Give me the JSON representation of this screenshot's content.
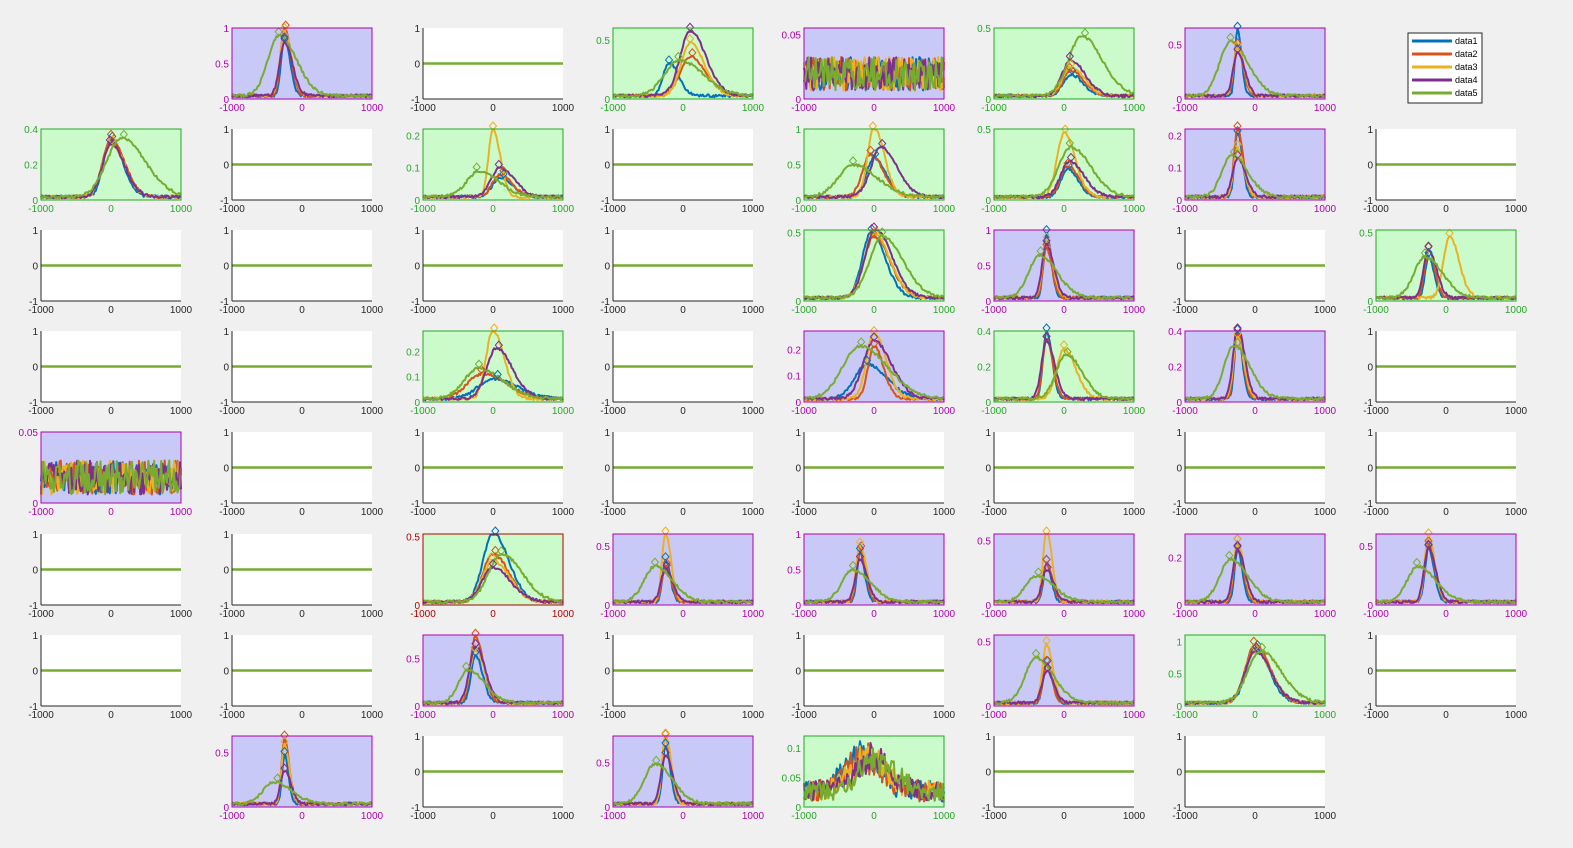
{
  "figure_background": "#f0f0f0",
  "colors": {
    "series": [
      "#0072BD",
      "#D95319",
      "#EDB120",
      "#7E2F8E",
      "#77AC30"
    ],
    "purple_bg": "#c9c9f8",
    "green_bg": "#cbfbcb",
    "purple_axis": "#b000b0",
    "green_axis": "#22aa22",
    "red_axis": "#b00000",
    "black_axis": "#262626"
  },
  "legend": {
    "entries": [
      "data1",
      "data2",
      "data3",
      "data4",
      "data5"
    ],
    "placement": "top-right"
  },
  "chart_data": {
    "type": "line",
    "layout": "8x8 grid of small line plots",
    "x_range": [
      -1000,
      1000
    ],
    "x_ticks": [
      "-1000",
      "0",
      "1000"
    ],
    "flat_y_ticks": [
      "1",
      "0",
      "-1"
    ],
    "panels": [
      {
        "row": 0,
        "col": 1,
        "kind": "peak",
        "theme": "purple",
        "ymax": 1,
        "yticks": [
          "1",
          "0.5",
          "0"
        ],
        "peak": -250,
        "amps": [
          0.8,
          0.95,
          0.9,
          0.75,
          0.85
        ],
        "shifts": [
          0,
          0,
          0,
          0,
          -80
        ],
        "widths": [
          70,
          80,
          90,
          100,
          220
        ]
      },
      {
        "row": 0,
        "col": 2,
        "kind": "flat"
      },
      {
        "row": 0,
        "col": 3,
        "kind": "peak",
        "theme": "green",
        "ymax": 0.6,
        "yticks": [
          "0.5",
          "0"
        ],
        "peak": 100,
        "amps": [
          0.28,
          0.33,
          0.45,
          0.55,
          0.3
        ],
        "shifts": [
          -300,
          0,
          0,
          0,
          -150
        ],
        "widths": [
          120,
          200,
          180,
          200,
          300
        ]
      },
      {
        "row": 0,
        "col": 4,
        "kind": "noise",
        "theme": "purple",
        "ymax": 0.055,
        "yticks": [
          "0.05",
          "0"
        ],
        "noise": 0.022
      },
      {
        "row": 0,
        "col": 5,
        "kind": "peak",
        "theme": "green",
        "ymax": 0.5,
        "yticks": [
          "0.5",
          "0"
        ],
        "peak": 100,
        "amps": [
          0.15,
          0.18,
          0.2,
          0.25,
          0.42
        ],
        "shifts": [
          0,
          0,
          0,
          0,
          150
        ],
        "widths": [
          150,
          160,
          170,
          180,
          260
        ]
      },
      {
        "row": 0,
        "col": 6,
        "kind": "peak",
        "theme": "purple",
        "ymax": 0.65,
        "yticks": [
          "0.5",
          "0"
        ],
        "peak": -250,
        "amps": [
          0.62,
          0.45,
          0.45,
          0.4,
          0.5
        ],
        "shifts": [
          0,
          0,
          0,
          0,
          -100
        ],
        "widths": [
          50,
          70,
          80,
          90,
          220
        ]
      },
      {
        "row": 1,
        "col": 0,
        "kind": "peak",
        "theme": "green",
        "ymax": 0.4,
        "yticks": [
          "0.4",
          "0.2",
          "0"
        ],
        "peak": 0,
        "amps": [
          0.32,
          0.33,
          0.3,
          0.3,
          0.33
        ],
        "shifts": [
          0,
          0,
          0,
          0,
          150
        ],
        "widths": [
          150,
          170,
          170,
          170,
          300
        ]
      },
      {
        "row": 1,
        "col": 1,
        "kind": "flat"
      },
      {
        "row": 1,
        "col": 2,
        "kind": "peak",
        "theme": "green",
        "ymax": 0.22,
        "yticks": [
          "0.2",
          "0.1",
          "0"
        ],
        "peak": 0,
        "amps": [
          0.06,
          0.07,
          0.21,
          0.09,
          0.08
        ],
        "shifts": [
          100,
          100,
          0,
          100,
          -200
        ],
        "widths": [
          150,
          150,
          90,
          180,
          250
        ]
      },
      {
        "row": 1,
        "col": 3,
        "kind": "flat"
      },
      {
        "row": 1,
        "col": 4,
        "kind": "peak",
        "theme": "green",
        "ymax": 1,
        "yticks": [
          "1",
          "0.5",
          "0"
        ],
        "peak": 0,
        "amps": [
          0.55,
          0.6,
          0.97,
          0.7,
          0.45
        ],
        "shifts": [
          0,
          -50,
          0,
          100,
          -300
        ],
        "widths": [
          150,
          160,
          130,
          200,
          300
        ]
      },
      {
        "row": 1,
        "col": 5,
        "kind": "peak",
        "theme": "green",
        "ymax": 0.5,
        "yticks": [
          "0.5",
          "0"
        ],
        "peak": 0,
        "amps": [
          0.2,
          0.22,
          0.45,
          0.25,
          0.35
        ],
        "shifts": [
          50,
          50,
          0,
          80,
          100
        ],
        "widths": [
          130,
          140,
          140,
          180,
          250
        ]
      },
      {
        "row": 1,
        "col": 6,
        "kind": "peak",
        "theme": "purple",
        "ymax": 0.22,
        "yticks": [
          "0.2",
          "0.1",
          "0"
        ],
        "peak": -250,
        "amps": [
          0.2,
          0.21,
          0.15,
          0.12,
          0.13
        ],
        "shifts": [
          0,
          0,
          0,
          0,
          -80
        ],
        "widths": [
          60,
          70,
          80,
          100,
          200
        ]
      },
      {
        "row": 1,
        "col": 7,
        "kind": "flat"
      },
      {
        "row": 2,
        "col": 0,
        "kind": "flat"
      },
      {
        "row": 2,
        "col": 1,
        "kind": "flat"
      },
      {
        "row": 2,
        "col": 2,
        "kind": "flat"
      },
      {
        "row": 2,
        "col": 3,
        "kind": "flat"
      },
      {
        "row": 2,
        "col": 4,
        "kind": "peak",
        "theme": "green",
        "ymax": 0.52,
        "yticks": [
          "0.5",
          "0"
        ],
        "peak": 0,
        "amps": [
          0.48,
          0.45,
          0.47,
          0.5,
          0.45
        ],
        "shifts": [
          -40,
          0,
          0,
          20,
          120
        ],
        "widths": [
          180,
          200,
          200,
          210,
          260
        ]
      },
      {
        "row": 2,
        "col": 5,
        "kind": "peak",
        "theme": "purple",
        "ymax": 1,
        "yticks": [
          "1",
          "0.5",
          "0"
        ],
        "peak": -250,
        "amps": [
          0.9,
          0.7,
          0.8,
          0.75,
          0.6
        ],
        "shifts": [
          0,
          0,
          0,
          0,
          -100
        ],
        "widths": [
          60,
          70,
          80,
          90,
          220
        ]
      },
      {
        "row": 2,
        "col": 6,
        "kind": "flat"
      },
      {
        "row": 2,
        "col": 7,
        "kind": "peak",
        "theme": "green",
        "ymax": 0.52,
        "yticks": [
          "0.5",
          "0"
        ],
        "peak": -250,
        "amps": [
          0.3,
          0.35,
          0.45,
          0.35,
          0.3
        ],
        "shifts": [
          0,
          0,
          300,
          0,
          -50
        ],
        "widths": [
          70,
          80,
          120,
          100,
          220
        ]
      },
      {
        "row": 3,
        "col": 0,
        "kind": "flat"
      },
      {
        "row": 3,
        "col": 1,
        "kind": "flat"
      },
      {
        "row": 3,
        "col": 2,
        "kind": "peak",
        "theme": "green",
        "ymax": 0.28,
        "yticks": [
          "0.2",
          "0.1",
          "0"
        ],
        "peak": 0,
        "amps": [
          0.08,
          0.1,
          0.27,
          0.2,
          0.12
        ],
        "shifts": [
          0,
          -150,
          0,
          50,
          -200
        ],
        "widths": [
          300,
          300,
          140,
          200,
          300
        ]
      },
      {
        "row": 3,
        "col": 3,
        "kind": "flat"
      },
      {
        "row": 3,
        "col": 4,
        "kind": "peak",
        "theme": "purple",
        "ymax": 0.27,
        "yticks": [
          "0.2",
          "0.1",
          "0"
        ],
        "peak": 0,
        "amps": [
          0.13,
          0.2,
          0.25,
          0.22,
          0.2
        ],
        "shifts": [
          -100,
          0,
          0,
          0,
          -200
        ],
        "widths": [
          250,
          120,
          150,
          220,
          350
        ]
      },
      {
        "row": 3,
        "col": 5,
        "kind": "peak",
        "theme": "green",
        "ymax": 0.4,
        "yticks": [
          "0.4",
          "0.2",
          "0"
        ],
        "peak": -250,
        "amps": [
          0.38,
          0.33,
          0.28,
          0.33,
          0.25
        ],
        "shifts": [
          0,
          0,
          250,
          0,
          280
        ],
        "widths": [
          70,
          80,
          150,
          100,
          200
        ]
      },
      {
        "row": 3,
        "col": 6,
        "kind": "peak",
        "theme": "purple",
        "ymax": 0.4,
        "yticks": [
          "0.4",
          "0.2",
          "0"
        ],
        "peak": -250,
        "amps": [
          0.37,
          0.38,
          0.35,
          0.4,
          0.3
        ],
        "shifts": [
          0,
          0,
          0,
          0,
          -50
        ],
        "widths": [
          60,
          70,
          80,
          90,
          200
        ]
      },
      {
        "row": 3,
        "col": 7,
        "kind": "flat"
      },
      {
        "row": 4,
        "col": 0,
        "kind": "noise",
        "theme": "purple",
        "ymax": 0.05,
        "yticks": [
          "0.05",
          "0"
        ],
        "noise": 0.02
      },
      {
        "row": 4,
        "col": 1,
        "kind": "flat"
      },
      {
        "row": 4,
        "col": 2,
        "kind": "flat"
      },
      {
        "row": 4,
        "col": 3,
        "kind": "flat"
      },
      {
        "row": 4,
        "col": 4,
        "kind": "flat"
      },
      {
        "row": 4,
        "col": 5,
        "kind": "flat"
      },
      {
        "row": 4,
        "col": 6,
        "kind": "flat"
      },
      {
        "row": 4,
        "col": 7,
        "kind": "flat"
      },
      {
        "row": 5,
        "col": 0,
        "kind": "flat"
      },
      {
        "row": 5,
        "col": 1,
        "kind": "flat"
      },
      {
        "row": 5,
        "col": 2,
        "kind": "peak",
        "theme": "red",
        "ymax": 0.52,
        "yticks": [
          "0.5",
          "0"
        ],
        "peak": 0,
        "amps": [
          0.5,
          0.35,
          0.3,
          0.25,
          0.35
        ],
        "shifts": [
          0,
          0,
          0,
          0,
          120
        ],
        "widths": [
          200,
          200,
          210,
          220,
          260
        ]
      },
      {
        "row": 5,
        "col": 3,
        "kind": "peak",
        "theme": "purple",
        "ymax": 0.6,
        "yticks": [
          "0.5",
          "0"
        ],
        "peak": -250,
        "amps": [
          0.35,
          0.3,
          0.58,
          0.28,
          0.3
        ],
        "shifts": [
          0,
          0,
          0,
          0,
          -150
        ],
        "widths": [
          60,
          70,
          70,
          90,
          220
        ]
      },
      {
        "row": 5,
        "col": 4,
        "kind": "peak",
        "theme": "purple",
        "ymax": 1,
        "yticks": [
          "1",
          "0.5",
          "0"
        ],
        "peak": -200,
        "amps": [
          0.7,
          0.75,
          0.8,
          0.6,
          0.45
        ],
        "shifts": [
          0,
          0,
          0,
          0,
          -100
        ],
        "widths": [
          60,
          70,
          80,
          90,
          220
        ]
      },
      {
        "row": 5,
        "col": 5,
        "kind": "peak",
        "theme": "purple",
        "ymax": 0.55,
        "yticks": [
          "0.5",
          "0"
        ],
        "peak": -250,
        "amps": [
          0.3,
          0.3,
          0.55,
          0.25,
          0.2
        ],
        "shifts": [
          0,
          0,
          0,
          0,
          -150
        ],
        "widths": [
          60,
          70,
          70,
          90,
          220
        ]
      },
      {
        "row": 5,
        "col": 6,
        "kind": "peak",
        "theme": "purple",
        "ymax": 0.3,
        "yticks": [
          "0.2",
          "0"
        ],
        "peak": -250,
        "amps": [
          0.22,
          0.25,
          0.25,
          0.22,
          0.18
        ],
        "shifts": [
          0,
          0,
          0,
          0,
          -100
        ],
        "widths": [
          60,
          70,
          80,
          90,
          220
        ]
      },
      {
        "row": 5,
        "col": 7,
        "kind": "peak",
        "theme": "purple",
        "ymax": 0.6,
        "yticks": [
          "0.5",
          "0"
        ],
        "peak": -250,
        "amps": [
          0.45,
          0.48,
          0.55,
          0.45,
          0.3
        ],
        "shifts": [
          0,
          0,
          0,
          0,
          -150
        ],
        "widths": [
          70,
          80,
          80,
          90,
          220
        ]
      },
      {
        "row": 6,
        "col": 0,
        "kind": "flat"
      },
      {
        "row": 6,
        "col": 1,
        "kind": "flat"
      },
      {
        "row": 6,
        "col": 2,
        "kind": "peak",
        "theme": "purple",
        "ymax": 0.75,
        "yticks": [
          "0.5",
          "0"
        ],
        "peak": -250,
        "amps": [
          0.5,
          0.7,
          0.55,
          0.6,
          0.35
        ],
        "shifts": [
          0,
          0,
          0,
          0,
          -100
        ],
        "widths": [
          90,
          100,
          120,
          120,
          200
        ]
      },
      {
        "row": 6,
        "col": 3,
        "kind": "flat"
      },
      {
        "row": 6,
        "col": 4,
        "kind": "flat"
      },
      {
        "row": 6,
        "col": 5,
        "kind": "peak",
        "theme": "purple",
        "ymax": 0.55,
        "yticks": [
          "0.5",
          "0"
        ],
        "peak": -250,
        "amps": [
          0.3,
          0.3,
          0.45,
          0.25,
          0.35
        ],
        "shifts": [
          0,
          0,
          0,
          0,
          -150
        ],
        "widths": [
          70,
          70,
          80,
          90,
          220
        ]
      },
      {
        "row": 6,
        "col": 6,
        "kind": "peak",
        "theme": "green",
        "ymax": 1.1,
        "yticks": [
          "1",
          "0.5",
          "0"
        ],
        "peak": 0,
        "amps": [
          0.85,
          0.9,
          0.8,
          0.8,
          0.8
        ],
        "shifts": [
          0,
          0,
          0,
          0,
          80
        ],
        "widths": [
          180,
          190,
          200,
          200,
          260
        ]
      },
      {
        "row": 6,
        "col": 7,
        "kind": "flat"
      },
      {
        "row": 7,
        "col": 1,
        "kind": "peak",
        "theme": "purple",
        "ymax": 0.65,
        "yticks": [
          "0.5",
          "0"
        ],
        "peak": -250,
        "amps": [
          0.45,
          0.6,
          0.55,
          0.3,
          0.2
        ],
        "shifts": [
          0,
          0,
          0,
          0,
          -150
        ],
        "widths": [
          50,
          60,
          60,
          80,
          220
        ]
      },
      {
        "row": 7,
        "col": 2,
        "kind": "flat"
      },
      {
        "row": 7,
        "col": 3,
        "kind": "peak",
        "theme": "purple",
        "ymax": 0.8,
        "yticks": [
          "0.5",
          "0"
        ],
        "peak": -250,
        "amps": [
          0.65,
          0.75,
          0.78,
          0.55,
          0.45
        ],
        "shifts": [
          0,
          0,
          0,
          0,
          -150
        ],
        "widths": [
          60,
          70,
          70,
          90,
          220
        ]
      },
      {
        "row": 7,
        "col": 4,
        "kind": "noise",
        "theme": "green",
        "ymax": 0.12,
        "yticks": [
          "0.1",
          "0.05",
          "0"
        ],
        "noise": 0.03,
        "bump": 0.07
      },
      {
        "row": 7,
        "col": 5,
        "kind": "flat"
      },
      {
        "row": 7,
        "col": 6,
        "kind": "flat"
      }
    ]
  }
}
